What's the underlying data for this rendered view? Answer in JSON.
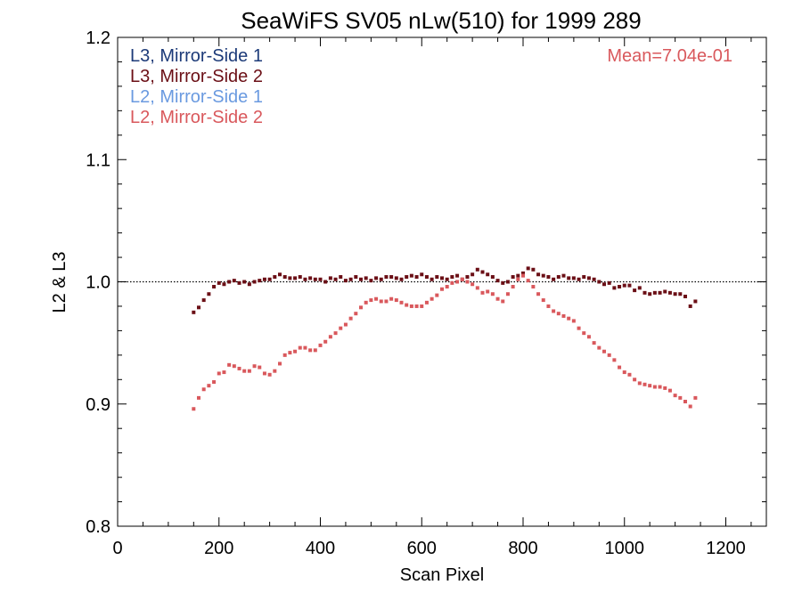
{
  "chart_data": {
    "type": "scatter",
    "title": "SeaWiFS SV05 nLw(510) for 1999 289",
    "xlabel": "Scan Pixel",
    "ylabel": "L2 & L3",
    "xlim": [
      0,
      1280
    ],
    "ylim": [
      0.8,
      1.2
    ],
    "x_ticks": [
      0,
      200,
      400,
      600,
      800,
      1000,
      1200
    ],
    "x_tick_labels": [
      "0",
      "200",
      "400",
      "600",
      "800",
      "1000",
      "1200"
    ],
    "y_ticks": [
      0.8,
      0.9,
      1.0,
      1.1,
      1.2
    ],
    "y_tick_labels": [
      "0.8",
      "0.9",
      "1.0",
      "1.1",
      "1.2"
    ],
    "reference_line": 1.0,
    "annotation": "Mean=7.04e-01",
    "annotation_color": "#d9585c",
    "legend_position": "top-left",
    "grid": false,
    "series": [
      {
        "name": "L3, Mirror-Side 1",
        "color": "#1c3a78",
        "x": [],
        "y": []
      },
      {
        "name": "L3, Mirror-Side 2",
        "color": "#6b0f16",
        "x": [
          150,
          160,
          170,
          180,
          190,
          200,
          210,
          220,
          230,
          240,
          250,
          260,
          270,
          280,
          290,
          300,
          310,
          320,
          330,
          340,
          350,
          360,
          370,
          380,
          390,
          400,
          410,
          420,
          430,
          440,
          450,
          460,
          470,
          480,
          490,
          500,
          510,
          520,
          530,
          540,
          550,
          560,
          570,
          580,
          590,
          600,
          610,
          620,
          630,
          640,
          650,
          660,
          670,
          680,
          690,
          700,
          710,
          720,
          730,
          740,
          750,
          760,
          770,
          780,
          790,
          800,
          810,
          820,
          830,
          840,
          850,
          860,
          870,
          880,
          890,
          900,
          910,
          920,
          930,
          940,
          950,
          960,
          970,
          980,
          990,
          1000,
          1010,
          1020,
          1030,
          1040,
          1050,
          1060,
          1070,
          1080,
          1090,
          1100,
          1110,
          1120,
          1130,
          1140
        ],
        "y": [
          0.975,
          0.979,
          0.985,
          0.99,
          0.996,
          0.999,
          0.998,
          1.0,
          1.001,
          0.999,
          1.0,
          0.998,
          1.0,
          1.001,
          1.002,
          1.002,
          1.004,
          1.006,
          1.004,
          1.003,
          1.003,
          1.004,
          1.002,
          1.003,
          1.002,
          1.002,
          1.0,
          1.003,
          1.002,
          1.004,
          1.001,
          1.002,
          1.004,
          1.002,
          1.003,
          1.001,
          1.003,
          1.002,
          1.004,
          1.004,
          1.003,
          1.002,
          1.004,
          1.005,
          1.004,
          1.006,
          1.004,
          1.002,
          1.004,
          1.003,
          1.002,
          1.004,
          1.005,
          1.002,
          1.004,
          1.006,
          1.01,
          1.008,
          1.006,
          1.004,
          1.001,
          0.999,
          1.0,
          1.004,
          1.005,
          1.007,
          1.011,
          1.01,
          1.006,
          1.005,
          1.004,
          1.002,
          1.004,
          1.005,
          1.003,
          1.003,
          1.002,
          1.004,
          1.003,
          1.002,
          1.0,
          0.998,
          0.999,
          0.995,
          0.996,
          0.997,
          0.997,
          0.993,
          0.995,
          0.991,
          0.99,
          0.991,
          0.991,
          0.992,
          0.991,
          0.99,
          0.99,
          0.988,
          0.98,
          0.984
        ]
      },
      {
        "name": "L2, Mirror-Side 1",
        "color": "#6a9ae0",
        "x": [],
        "y": []
      },
      {
        "name": "L2, Mirror-Side 2",
        "color": "#d9585c",
        "x": [
          150,
          160,
          170,
          180,
          190,
          200,
          210,
          220,
          230,
          240,
          250,
          260,
          270,
          280,
          290,
          300,
          310,
          320,
          330,
          340,
          350,
          360,
          370,
          380,
          390,
          400,
          410,
          420,
          430,
          440,
          450,
          460,
          470,
          480,
          490,
          500,
          510,
          520,
          530,
          540,
          550,
          560,
          570,
          580,
          590,
          600,
          610,
          620,
          630,
          640,
          650,
          660,
          670,
          680,
          690,
          700,
          710,
          720,
          730,
          740,
          750,
          760,
          770,
          780,
          790,
          800,
          810,
          820,
          830,
          840,
          850,
          860,
          870,
          880,
          890,
          900,
          910,
          920,
          930,
          940,
          950,
          960,
          970,
          980,
          990,
          1000,
          1010,
          1020,
          1030,
          1040,
          1050,
          1060,
          1070,
          1080,
          1090,
          1100,
          1110,
          1120,
          1130,
          1140
        ],
        "y": [
          0.896,
          0.905,
          0.912,
          0.915,
          0.918,
          0.925,
          0.926,
          0.932,
          0.931,
          0.929,
          0.927,
          0.927,
          0.931,
          0.93,
          0.925,
          0.924,
          0.927,
          0.933,
          0.94,
          0.942,
          0.943,
          0.946,
          0.946,
          0.944,
          0.944,
          0.948,
          0.951,
          0.955,
          0.958,
          0.962,
          0.965,
          0.97,
          0.974,
          0.979,
          0.983,
          0.985,
          0.986,
          0.984,
          0.984,
          0.986,
          0.985,
          0.983,
          0.981,
          0.98,
          0.98,
          0.98,
          0.983,
          0.986,
          0.989,
          0.994,
          0.996,
          0.999,
          1.0,
          1.002,
          1.0,
          0.998,
          0.995,
          0.991,
          0.992,
          0.99,
          0.986,
          0.984,
          0.99,
          0.996,
          1.002,
          1.005,
          1.001,
          0.996,
          0.99,
          0.985,
          0.98,
          0.976,
          0.974,
          0.972,
          0.97,
          0.968,
          0.962,
          0.958,
          0.955,
          0.95,
          0.946,
          0.943,
          0.94,
          0.936,
          0.93,
          0.926,
          0.924,
          0.92,
          0.917,
          0.916,
          0.915,
          0.914,
          0.914,
          0.913,
          0.911,
          0.907,
          0.905,
          0.902,
          0.898,
          0.905
        ]
      }
    ]
  }
}
